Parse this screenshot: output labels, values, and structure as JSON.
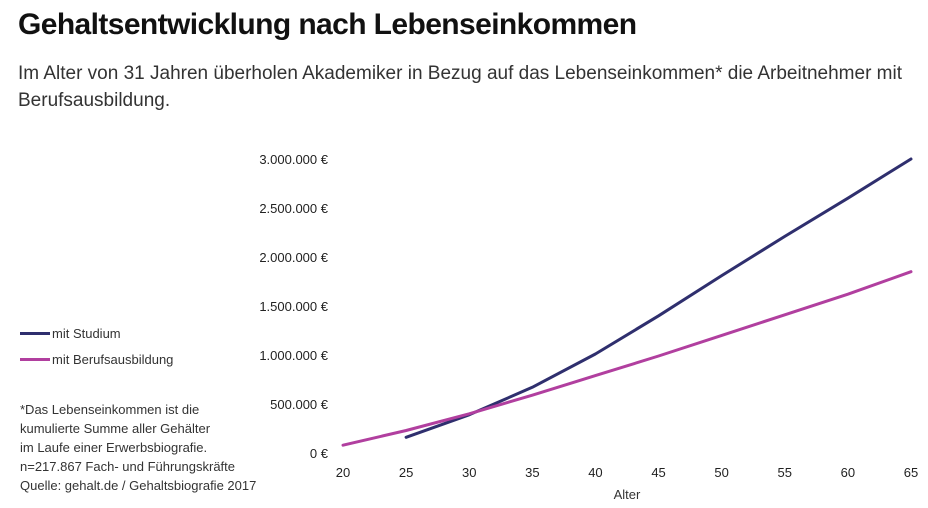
{
  "title": "Gehaltsentwicklung nach Lebenseinkommen",
  "subtitle": "Im Alter von 31 Jahren überholen Akademiker in Bezug auf das Lebenseinkommen* die Arbeitnehmer mit Berufsausbildung.",
  "note_lines": [
    "*Das Lebenseinkommen ist die",
    "kumulierte Summe aller Gehälter",
    "im Laufe einer Erwerbsbiografie.",
    "n=217.867 Fach- und Führungskräfte",
    "Quelle: gehalt.de / Gehaltsbiografie 2017"
  ],
  "chart_data": {
    "type": "line",
    "title": "",
    "xlabel": "Alter",
    "ylabel": "",
    "xlim": [
      20,
      65
    ],
    "ylim": [
      0,
      3000000
    ],
    "x_ticks": [
      20,
      25,
      30,
      35,
      40,
      45,
      50,
      55,
      60,
      65
    ],
    "y_ticks": [
      0,
      500000,
      1000000,
      1500000,
      2000000,
      2500000,
      3000000
    ],
    "y_tick_labels": [
      "0 €",
      "500.000 €",
      "1.000.000 €",
      "1.500.000 €",
      "2.000.000 €",
      "2.500.000 €",
      "3.000.000 €"
    ],
    "grid": false,
    "legend_position": "left",
    "series": [
      {
        "name": "mit Studium",
        "color": "#2f2f6e",
        "x": [
          25,
          30,
          35,
          40,
          45,
          50,
          55,
          60,
          65
        ],
        "y": [
          160000,
          390000,
          670000,
          1010000,
          1400000,
          1810000,
          2210000,
          2600000,
          3000000
        ]
      },
      {
        "name": "mit Berufsausbildung",
        "color": "#b13f9f",
        "x": [
          20,
          25,
          30,
          35,
          40,
          45,
          50,
          55,
          60,
          65
        ],
        "y": [
          80000,
          230000,
          400000,
          590000,
          790000,
          990000,
          1200000,
          1410000,
          1620000,
          1850000
        ]
      }
    ]
  }
}
